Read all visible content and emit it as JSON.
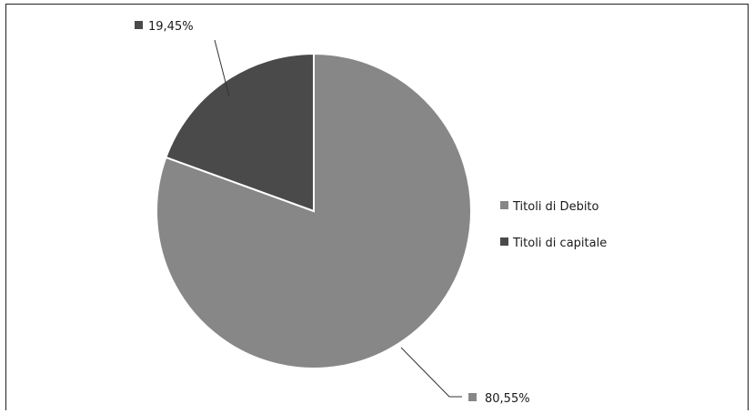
{
  "chart_data": {
    "type": "pie",
    "title": "",
    "slices": [
      {
        "label": "Titoli di Debito",
        "value": 80.55,
        "display": "80,55%",
        "color": "#878787"
      },
      {
        "label": "Titoli di capitale",
        "value": 19.45,
        "display": "19,45%",
        "color": "#4a4a4a"
      }
    ],
    "legend_position": "right",
    "data_labels": "outside with leader lines",
    "start_angle": "12 o'clock, clockwise"
  }
}
